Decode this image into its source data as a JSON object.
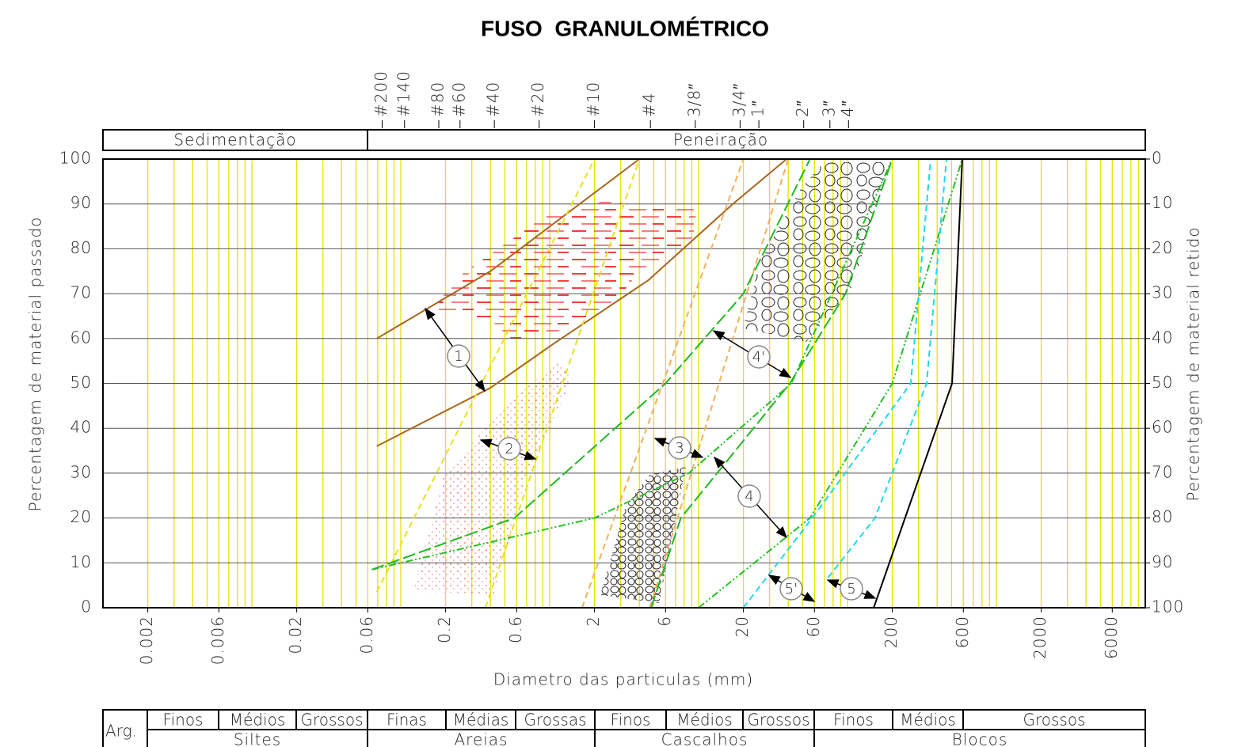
{
  "chart_data": {
    "type": "line",
    "title": "FUSO  GRANULOMÉTRICO",
    "header": [
      "Sedimentação",
      "Peneiração"
    ],
    "xlabel": "Diametro das particulas (mm)",
    "ylabel": "Percentagem de material passado",
    "y2label": "Percentagem de material retido",
    "xscale": "log",
    "xlim": [
      0.001,
      10000
    ],
    "xticks": [
      0.002,
      0.006,
      0.02,
      0.06,
      0.2,
      0.6,
      2,
      6,
      20,
      60,
      200,
      600,
      2000,
      6000
    ],
    "xgrid": [
      0.001,
      0.002,
      0.003,
      0.004,
      0.005,
      0.006,
      0.007,
      0.008,
      0.009,
      0.01,
      0.02,
      0.03,
      0.04,
      0.05,
      0.06,
      0.07,
      0.08,
      0.09,
      0.1,
      0.2,
      0.3,
      0.4,
      0.5,
      0.6,
      0.7,
      0.8,
      0.9,
      1,
      2,
      3,
      4,
      5,
      6,
      7,
      8,
      9,
      10,
      20,
      30,
      40,
      50,
      60,
      70,
      80,
      90,
      100,
      200,
      300,
      400,
      500,
      600,
      700,
      800,
      900,
      1000,
      2000,
      3000,
      4000,
      5000,
      6000,
      7000,
      8000,
      9000,
      10000
    ],
    "x2ticks": [
      {
        "value": 0.075,
        "label": "#200"
      },
      {
        "value": 0.106,
        "label": "#140"
      },
      {
        "value": 0.18,
        "label": "#80"
      },
      {
        "value": 0.25,
        "label": "#60"
      },
      {
        "value": 0.425,
        "label": "#40"
      },
      {
        "value": 0.85,
        "label": "#20"
      },
      {
        "value": 2.0,
        "label": "#10"
      },
      {
        "value": 4.75,
        "label": "#4"
      },
      {
        "value": 9.5,
        "label": "3/8″"
      },
      {
        "value": 19,
        "label": "3/4″"
      },
      {
        "value": 25.4,
        "label": "1″"
      },
      {
        "value": 50.8,
        "label": "2″"
      },
      {
        "value": 76.2,
        "label": "3″"
      },
      {
        "value": 101.6,
        "label": "4″"
      }
    ],
    "ylim": [
      0,
      100
    ],
    "yticks": [
      0,
      10,
      20,
      30,
      40,
      50,
      60,
      70,
      80,
      90,
      100
    ],
    "y2lim": [
      100,
      0
    ],
    "y2ticks": [
      0,
      10,
      20,
      30,
      40,
      50,
      60,
      70,
      80,
      90,
      100
    ],
    "grid": true,
    "grid_color": "#ece000",
    "series": [
      {
        "label": "1",
        "color": "#a8661e",
        "style": "solid",
        "lines": [
          {
            "x": [
              0.069,
              0.4,
              4
            ],
            "y": [
              60,
              75,
              100
            ]
          },
          {
            "x": [
              0.069,
              0.4,
              1.08,
              4.6,
              17,
              39
            ],
            "y": [
              36,
              49,
              59,
              73,
              90,
              100
            ]
          }
        ]
      },
      {
        "label": "2",
        "color": "#e8e020",
        "style": "dashed",
        "lines": [
          {
            "x": [
              0.069,
              2
            ],
            "y": [
              3.5,
              100
            ]
          },
          {
            "x": [
              0.37,
              4
            ],
            "y": [
              0,
              100
            ]
          }
        ]
      },
      {
        "label": "3",
        "color": "#f0b060",
        "style": "dashed",
        "lines": [
          {
            "x": [
              1.65,
              20
            ],
            "y": [
              0,
              100
            ]
          },
          {
            "x": [
              4.7,
              40
            ],
            "y": [
              0,
              100
            ]
          }
        ]
      },
      {
        "label": "4",
        "color": "#22c022",
        "style": "dashdot",
        "lines": [
          {
            "x": [
              0.064,
              2,
              8.6,
              42,
              200
            ],
            "y": [
              8.5,
              20,
              30,
              50,
              100
            ]
          },
          {
            "x": [
              10,
              56,
              200,
              590
            ],
            "y": [
              0,
              20,
              50,
              100
            ]
          }
        ]
      },
      {
        "label": "4'",
        "color": "#22b822",
        "style": "longdash",
        "lines": [
          {
            "x": [
              0.064,
              0.58,
              6,
              20,
              56
            ],
            "y": [
              8.5,
              20,
              50,
              70,
              100
            ]
          },
          {
            "x": [
              4.8,
              7.6,
              41,
              97,
              200
            ],
            "y": [
              0,
              20,
              50,
              70,
              100
            ]
          }
        ]
      },
      {
        "label": "5'",
        "color": "#20d8e8",
        "style": "dashed",
        "lines": [
          {
            "x": [
              20,
              58,
              266,
              362
            ],
            "y": [
              0,
              20,
              50,
              100
            ]
          },
          {
            "x": [
              74,
              153,
              340,
              462
            ],
            "y": [
              6.7,
              20,
              50,
              100
            ]
          }
        ]
      },
      {
        "label": "5",
        "color": "#000000",
        "style": "solid",
        "lines": [
          {
            "x": [
              150,
              504,
              590
            ],
            "y": [
              0,
              50,
              100
            ]
          }
        ]
      }
    ]
  },
  "classification": {
    "clay": "Arg.",
    "groups": [
      {
        "name": "Siltes",
        "classes": [
          "Finos",
          "Médios",
          "Grossos"
        ]
      },
      {
        "name": "Areias",
        "classes": [
          "Finas",
          "Médias",
          "Grossas"
        ]
      },
      {
        "name": "Cascalhos",
        "classes": [
          "Finos",
          "Médios",
          "Grossos"
        ]
      },
      {
        "name": "Blocos",
        "classes": [
          "Finos",
          "Médios",
          "Grossos"
        ]
      }
    ]
  }
}
